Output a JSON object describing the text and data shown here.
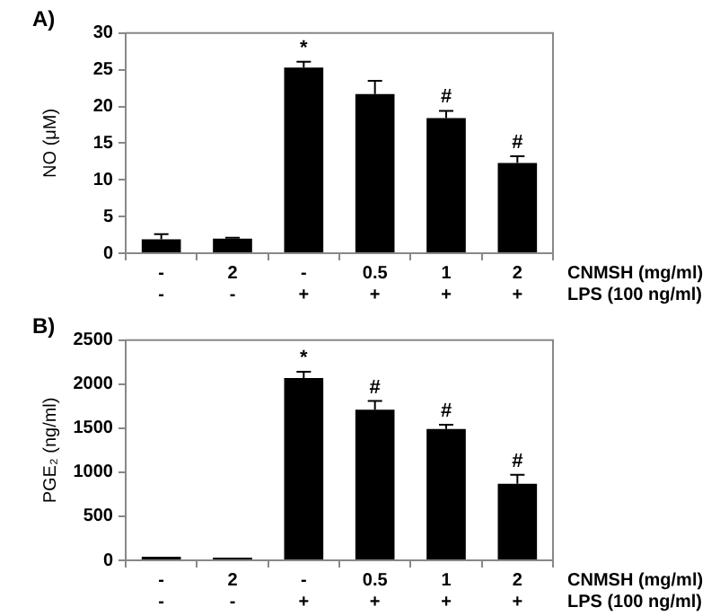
{
  "chart_data": [
    {
      "type": "bar",
      "title": "A)",
      "ylabel": "NO (μM)",
      "categories": [
        "-\n-",
        "2\n-",
        "-\n+",
        "0.5\n+",
        "1\n+",
        "2\n+"
      ],
      "values": [
        1.9,
        2.0,
        25.3,
        21.7,
        18.4,
        12.3
      ],
      "errors": [
        0.7,
        0.1,
        0.8,
        1.8,
        1.0,
        0.9
      ],
      "color": "#000000",
      "ylim": [
        0,
        30
      ],
      "yticks": [
        0,
        5,
        10,
        15,
        20,
        25,
        30
      ],
      "grid": false,
      "legend": false,
      "annotations": [
        "CNMSH (mg/ml)",
        "LPS (100 ng/ml)",
        {
          "text": "*",
          "x": "-\n+",
          "y": 26.1
        },
        {
          "text": "#",
          "x": "1\n+",
          "y": 19.4
        },
        {
          "text": "#",
          "x": "2\n+",
          "y": 13.2
        }
      ]
    },
    {
      "type": "bar",
      "title": "B)",
      "ylabel": "PGE₂ (ng/ml)",
      "categories": [
        "-\n-",
        "2\n-",
        "-\n+",
        "0.5\n+",
        "1\n+",
        "2\n+"
      ],
      "values": [
        40,
        30,
        2070,
        1710,
        1490,
        870
      ],
      "errors": [
        null,
        null,
        70,
        100,
        50,
        100
      ],
      "color": "#000000",
      "ylim": [
        0,
        2500
      ],
      "yticks": [
        0,
        500,
        1000,
        1500,
        2000,
        2500
      ],
      "grid": false,
      "legend": false,
      "annotations": [
        "CNMSH (mg/ml)",
        "LPS (100 ng/ml)",
        {
          "text": "*",
          "x": "-\n+",
          "y": 2140
        },
        {
          "text": "#",
          "x": "0.5\n+",
          "y": 1810
        },
        {
          "text": "#",
          "x": "1\n+",
          "y": 1540
        },
        {
          "text": "#",
          "x": "2\n+",
          "y": 970
        }
      ]
    }
  ]
}
